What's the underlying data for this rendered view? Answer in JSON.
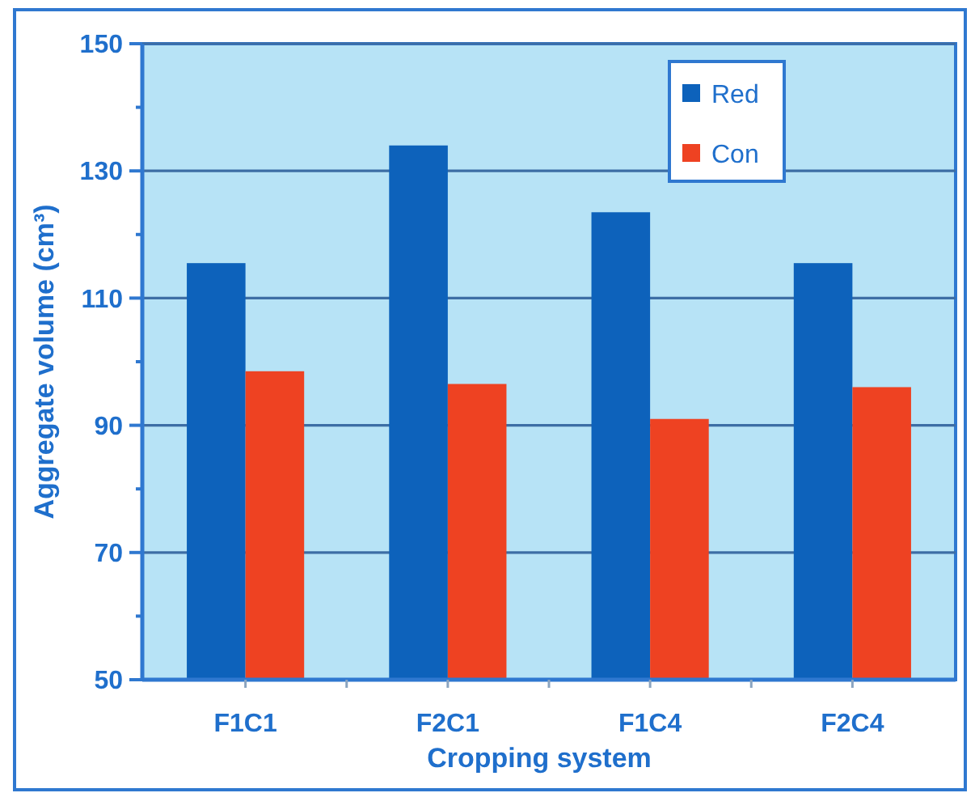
{
  "chart_data": {
    "type": "bar",
    "xlabel": "Cropping system",
    "ylabel": "Aggregate volume (cm³)",
    "categories": [
      "F1C1",
      "F2C1",
      "F1C4",
      "F2C4"
    ],
    "series": [
      {
        "name": "Red",
        "color": "#0d62bb",
        "values": [
          115.5,
          134,
          123.5,
          115.5
        ]
      },
      {
        "name": "Con",
        "color": "#ee4222",
        "values": [
          98.5,
          96.5,
          91,
          96
        ]
      }
    ],
    "ylim": [
      50,
      150
    ],
    "yticks": [
      50,
      {
        "value": 60,
        "label": null
      },
      70,
      {
        "value": 80,
        "label": null
      },
      90,
      {
        "value": 100,
        "label": null
      },
      110,
      {
        "value": 120,
        "label": null
      },
      130,
      {
        "value": 140,
        "label": null
      },
      150
    ],
    "grid": "y",
    "legend": "top right"
  }
}
